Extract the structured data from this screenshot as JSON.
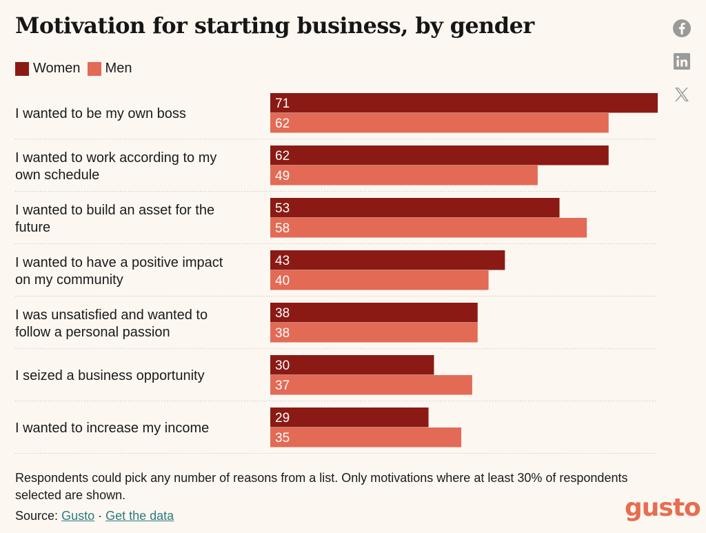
{
  "colors": {
    "women": "#8b1a14",
    "men": "#e36a55",
    "brand": "#e86c4f",
    "link": "#2a7a7e",
    "gridline": "#cfc7bf",
    "icon": "#9a9a9a"
  },
  "social": {
    "facebook": "facebook-icon",
    "linkedin": "linkedin-icon",
    "x": "x-icon"
  },
  "chart_data": {
    "type": "bar",
    "orientation": "horizontal",
    "title": "Motivation for starting business, by gender",
    "categories": [
      [
        "I wanted to be my own boss"
      ],
      [
        "I wanted to work according to my",
        "own schedule"
      ],
      [
        "I wanted to build an asset for the",
        "future"
      ],
      [
        "I wanted to have a positive impact",
        "on my community"
      ],
      [
        "I was unsatisfied and wanted to",
        "follow a personal passion"
      ],
      [
        "I seized a business opportunity"
      ],
      [
        "I wanted to increase my income"
      ]
    ],
    "series": [
      {
        "name": "Women",
        "values": [
          71,
          62,
          53,
          43,
          38,
          30,
          29
        ]
      },
      {
        "name": "Men",
        "values": [
          62,
          49,
          58,
          40,
          38,
          37,
          35
        ]
      }
    ],
    "xlim": [
      0,
      71
    ],
    "legend": "top-left",
    "grid": false
  },
  "footnote": "Respondents could pick any number of reasons from a list. Only motivations where at least 30% of respondents selected are shown.",
  "source": {
    "prefix": "Source:",
    "link1": "Gusto",
    "separator": "·",
    "link2": "Get the data"
  },
  "brand": {
    "logo": "gusto"
  }
}
